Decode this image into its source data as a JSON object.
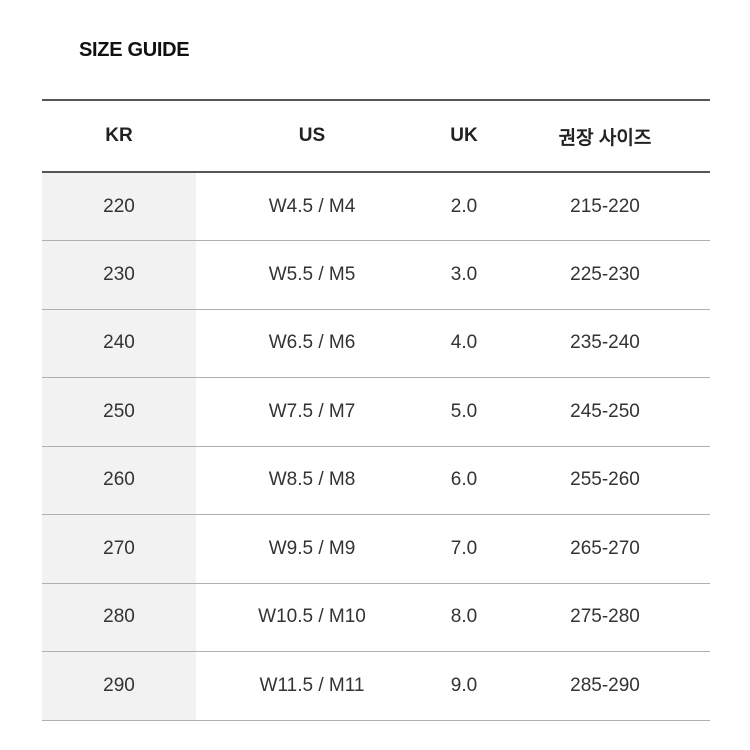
{
  "title": "SIZE GUIDE",
  "headers": [
    "KR",
    "US",
    "UK",
    "권장 사이즈"
  ],
  "rows": [
    [
      "220",
      "W4.5 / M4",
      "2.0",
      "215-220"
    ],
    [
      "230",
      "W5.5 / M5",
      "3.0",
      "225-230"
    ],
    [
      "240",
      "W6.5 / M6",
      "4.0",
      "235-240"
    ],
    [
      "250",
      "W7.5 / M7",
      "5.0",
      "245-250"
    ],
    [
      "260",
      "W8.5 / M8",
      "6.0",
      "255-260"
    ],
    [
      "270",
      "W9.5 / M9",
      "7.0",
      "265-270"
    ],
    [
      "280",
      "W10.5 / M10",
      "8.0",
      "275-280"
    ],
    [
      "290",
      "W11.5 / M11",
      "9.0",
      "285-290"
    ]
  ]
}
